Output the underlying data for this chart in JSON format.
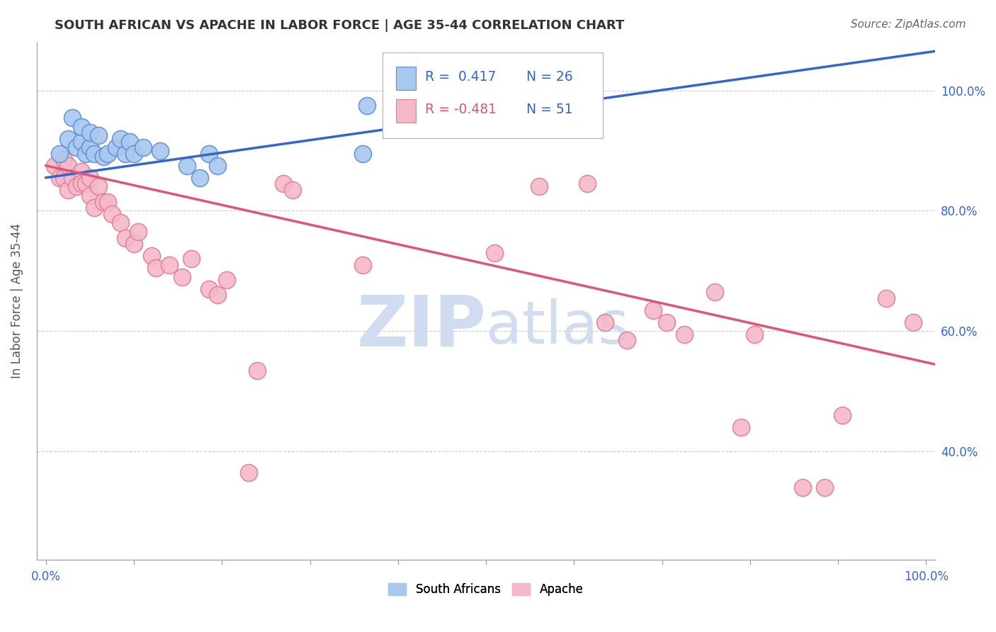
{
  "title": "SOUTH AFRICAN VS APACHE IN LABOR FORCE | AGE 35-44 CORRELATION CHART",
  "source": "Source: ZipAtlas.com",
  "ylabel": "In Labor Force | Age 35-44",
  "xlim": [
    -0.01,
    1.01
  ],
  "ylim": [
    0.22,
    1.08
  ],
  "xticks": [
    0.0,
    0.1,
    0.2,
    0.3,
    0.4,
    0.5,
    0.6,
    0.7,
    0.8,
    0.9,
    1.0
  ],
  "xtick_labels_show": [
    "0.0%",
    "",
    "",
    "",
    "",
    "",
    "",
    "",
    "",
    "",
    "100.0%"
  ],
  "yticks_right": [
    0.4,
    0.6,
    0.8,
    1.0
  ],
  "ytick_labels_right": [
    "40.0%",
    "60.0%",
    "80.0%",
    "100.0%"
  ],
  "legend_r1": "R =  0.417",
  "legend_n1": "N = 26",
  "legend_r2": "R = -0.481",
  "legend_n2": "N = 51",
  "legend_label1": "South Africans",
  "legend_label2": "Apache",
  "blue_color": "#A8C8F0",
  "pink_color": "#F5B8C8",
  "blue_edge_color": "#6090D0",
  "pink_edge_color": "#E08098",
  "blue_line_color": "#3366CC",
  "pink_line_color": "#DD5577",
  "blue_r_color": "#3366CC",
  "pink_r_color": "#DD5577",
  "n_color": "#3366CC",
  "background_color": "#FFFFFF",
  "watermark_color": "#D0DCF0",
  "grid_color": "#CCCCCC",
  "title_color": "#333333",
  "source_color": "#666666",
  "axis_label_color": "#555555",
  "ytick_color": "#3366CC",
  "xtick_color": "#3366CC",
  "blue_x": [
    0.015,
    0.025,
    0.03,
    0.035,
    0.04,
    0.04,
    0.045,
    0.05,
    0.05,
    0.055,
    0.06,
    0.065,
    0.07,
    0.08,
    0.085,
    0.09,
    0.095,
    0.1,
    0.11,
    0.13,
    0.16,
    0.175,
    0.185,
    0.195,
    0.36,
    0.365
  ],
  "blue_y": [
    0.895,
    0.92,
    0.955,
    0.905,
    0.915,
    0.94,
    0.895,
    0.905,
    0.93,
    0.895,
    0.925,
    0.89,
    0.895,
    0.905,
    0.92,
    0.895,
    0.915,
    0.895,
    0.905,
    0.9,
    0.875,
    0.855,
    0.895,
    0.875,
    0.895,
    0.975
  ],
  "pink_x": [
    0.01,
    0.015,
    0.02,
    0.02,
    0.025,
    0.025,
    0.03,
    0.035,
    0.04,
    0.04,
    0.045,
    0.05,
    0.05,
    0.055,
    0.06,
    0.065,
    0.07,
    0.075,
    0.085,
    0.09,
    0.1,
    0.105,
    0.12,
    0.125,
    0.14,
    0.155,
    0.165,
    0.185,
    0.195,
    0.205,
    0.23,
    0.24,
    0.27,
    0.28,
    0.36,
    0.51,
    0.56,
    0.615,
    0.635,
    0.66,
    0.69,
    0.705,
    0.725,
    0.76,
    0.79,
    0.805,
    0.86,
    0.885,
    0.905,
    0.955,
    0.985
  ],
  "pink_y": [
    0.875,
    0.855,
    0.885,
    0.855,
    0.875,
    0.835,
    0.855,
    0.84,
    0.865,
    0.845,
    0.845,
    0.855,
    0.825,
    0.805,
    0.84,
    0.815,
    0.815,
    0.795,
    0.78,
    0.755,
    0.745,
    0.765,
    0.725,
    0.705,
    0.71,
    0.69,
    0.72,
    0.67,
    0.66,
    0.685,
    0.365,
    0.535,
    0.845,
    0.835,
    0.71,
    0.73,
    0.84,
    0.845,
    0.615,
    0.585,
    0.635,
    0.615,
    0.595,
    0.665,
    0.44,
    0.595,
    0.34,
    0.34,
    0.46,
    0.655,
    0.615
  ],
  "blue_trend_x0": 0.0,
  "blue_trend_x1": 1.01,
  "blue_trend_y0": 0.855,
  "blue_trend_y1": 1.065,
  "pink_trend_x0": 0.0,
  "pink_trend_x1": 1.01,
  "pink_trend_y0": 0.875,
  "pink_trend_y1": 0.545
}
